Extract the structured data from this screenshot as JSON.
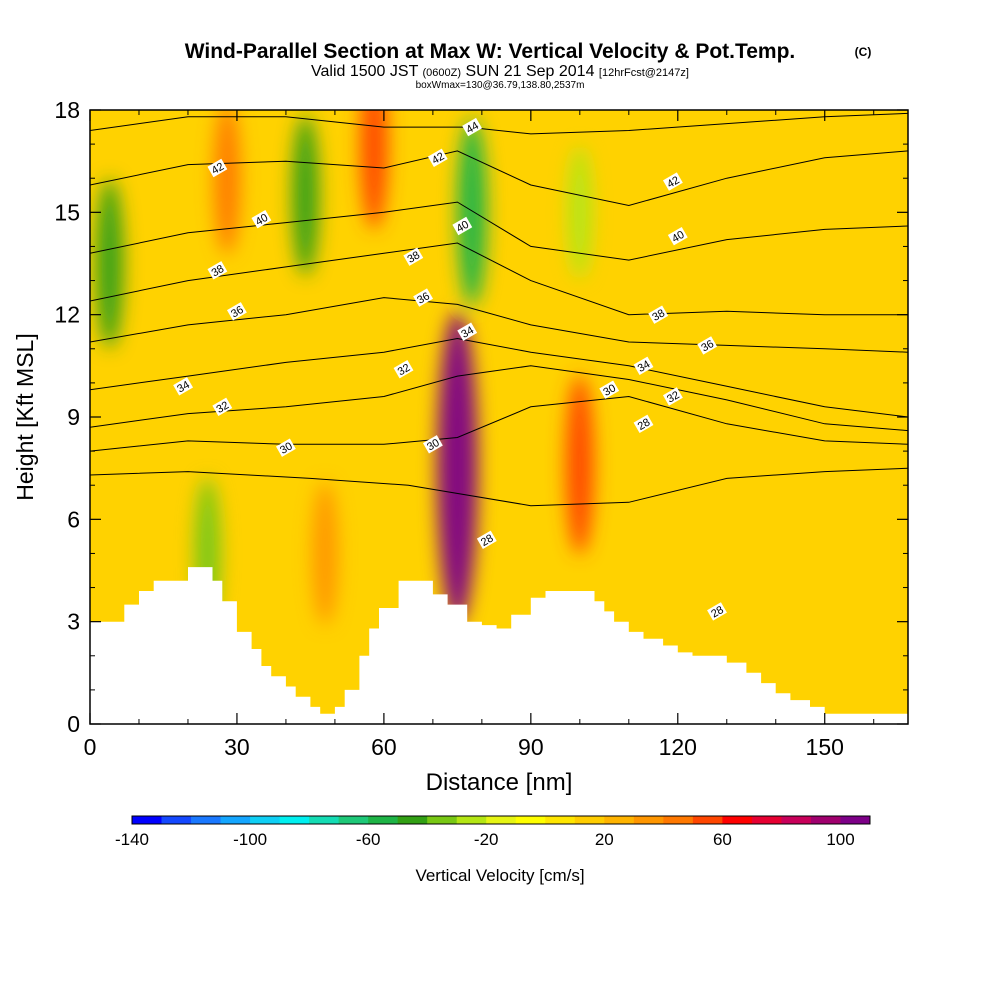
{
  "chart_data": {
    "type": "heatmap",
    "title": "Wind-Parallel Section at Max W: Vertical Velocity & Pot.Temp.",
    "title_mark": "(C)",
    "subtitle": {
      "valid_label": "Valid 1500 JST",
      "utc": "(0600Z)",
      "date": "SUN 21 Sep 2014",
      "forecast": "[12hrFcst@2147z]"
    },
    "box_note": "boxWmax=130@36.79,138.80,2537m",
    "xlabel": "Distance [nm]",
    "ylabel": "Height [Kft MSL]",
    "xlim": [
      0,
      167
    ],
    "ylim": [
      0,
      18
    ],
    "x_ticks": [
      0,
      30,
      60,
      90,
      120,
      150
    ],
    "x_tick_labels": [
      "0",
      "30",
      "60",
      "90",
      "120",
      "150"
    ],
    "y_ticks": [
      0,
      3,
      6,
      9,
      12,
      15,
      18
    ],
    "y_tick_labels": [
      "0",
      "3",
      "6",
      "9",
      "12",
      "15",
      "18"
    ],
    "colorbar": {
      "label": "Vertical Velocity [cm/s]",
      "min": -140,
      "max": 110,
      "step": 10,
      "tick_values": [
        -140,
        -100,
        -60,
        -20,
        20,
        60,
        100
      ],
      "tick_labels": [
        "-140",
        "-100",
        "-60",
        "-20",
        "20",
        "60",
        "100"
      ],
      "colors": [
        "#0000ff",
        "#1448ff",
        "#1a78ff",
        "#14a6ff",
        "#0fcff5",
        "#00f0f0",
        "#14dcb4",
        "#1ec878",
        "#1eb446",
        "#32a014",
        "#78c814",
        "#b4e614",
        "#e6f514",
        "#ffff00",
        "#ffe600",
        "#ffcd00",
        "#ffb400",
        "#ff9600",
        "#ff7800",
        "#ff4600",
        "#ff0000",
        "#e60032",
        "#c8005a",
        "#a0006e",
        "#7d0087"
      ]
    },
    "velocity_features": [
      {
        "x": 75,
        "y": 7.5,
        "w": 130,
        "note": "max updraft"
      },
      {
        "x": 100,
        "y": 7.6,
        "w": 55
      },
      {
        "x": 48,
        "y": 5.0,
        "w": 35
      },
      {
        "x": 28,
        "y": 16.0,
        "w": 40
      },
      {
        "x": 58,
        "y": 17.0,
        "w": 50
      },
      {
        "x": 78,
        "y": 15.0,
        "w": -60
      },
      {
        "x": 100,
        "y": 15.0,
        "w": -30
      },
      {
        "x": 44,
        "y": 15.5,
        "w": -45
      },
      {
        "x": 4,
        "y": 13.5,
        "w": -50
      },
      {
        "x": 24,
        "y": 5.0,
        "w": -40
      }
    ],
    "terrain_profile": {
      "x": [
        0,
        5,
        7,
        10,
        13,
        20,
        25,
        27,
        30,
        33,
        35,
        37,
        40,
        42,
        45,
        47,
        50,
        52,
        55,
        57,
        59,
        63,
        68,
        70,
        73,
        77,
        80,
        83,
        86,
        90,
        93,
        95,
        100,
        103,
        105,
        107,
        110,
        113,
        117,
        120,
        123,
        126,
        130,
        134,
        137,
        140,
        143,
        147,
        150,
        152,
        163,
        167
      ],
      "y": [
        3.0,
        3.0,
        3.5,
        3.9,
        4.2,
        4.6,
        4.2,
        3.6,
        2.7,
        2.2,
        1.7,
        1.4,
        1.1,
        0.8,
        0.5,
        0.3,
        0.5,
        1.0,
        2.0,
        2.8,
        3.4,
        4.2,
        4.2,
        3.8,
        3.5,
        3.0,
        2.9,
        2.8,
        3.2,
        3.7,
        3.9,
        3.9,
        3.9,
        3.6,
        3.3,
        3.0,
        2.7,
        2.5,
        2.3,
        2.1,
        2.0,
        2.0,
        1.8,
        1.5,
        1.2,
        0.9,
        0.7,
        0.5,
        0.3,
        0.3,
        0.3,
        0.6
      ]
    },
    "isentropes": [
      {
        "value": 28,
        "x": [
          0,
          20,
          45,
          65,
          90,
          110,
          130,
          150,
          167
        ],
        "y": [
          7.3,
          7.4,
          7.2,
          7.0,
          6.4,
          6.5,
          7.2,
          7.4,
          7.5
        ]
      },
      {
        "value": 30,
        "x": [
          0,
          20,
          40,
          60,
          75,
          90,
          110,
          130,
          150,
          167
        ],
        "y": [
          8.0,
          8.3,
          8.2,
          8.2,
          8.4,
          9.3,
          9.6,
          8.8,
          8.3,
          8.2
        ]
      },
      {
        "value": 32,
        "x": [
          0,
          20,
          40,
          60,
          75,
          90,
          110,
          130,
          150,
          167
        ],
        "y": [
          8.7,
          9.1,
          9.3,
          9.6,
          10.2,
          10.5,
          10.1,
          9.5,
          8.8,
          8.6
        ]
      },
      {
        "value": 34,
        "x": [
          0,
          20,
          40,
          60,
          75,
          90,
          110,
          130,
          150,
          167
        ],
        "y": [
          9.8,
          10.2,
          10.6,
          10.9,
          11.3,
          10.9,
          10.5,
          9.9,
          9.3,
          9.0
        ]
      },
      {
        "value": 36,
        "x": [
          0,
          20,
          40,
          60,
          75,
          90,
          110,
          130,
          150,
          167
        ],
        "y": [
          11.2,
          11.7,
          12.0,
          12.5,
          12.3,
          11.7,
          11.2,
          11.1,
          11.0,
          10.9
        ]
      },
      {
        "value": 38,
        "x": [
          0,
          20,
          40,
          60,
          75,
          90,
          110,
          130,
          150,
          167
        ],
        "y": [
          12.4,
          13.0,
          13.4,
          13.8,
          14.1,
          13.0,
          12.0,
          12.1,
          12.0,
          12.0
        ]
      },
      {
        "value": 40,
        "x": [
          0,
          20,
          40,
          60,
          75,
          90,
          110,
          130,
          150,
          167
        ],
        "y": [
          13.8,
          14.4,
          14.7,
          15.0,
          15.3,
          14.0,
          13.6,
          14.2,
          14.5,
          14.6
        ]
      },
      {
        "value": 42,
        "x": [
          0,
          20,
          40,
          60,
          75,
          90,
          110,
          130,
          150,
          167
        ],
        "y": [
          15.8,
          16.4,
          16.5,
          16.3,
          16.8,
          15.8,
          15.2,
          16.0,
          16.6,
          16.8
        ]
      },
      {
        "value": 44,
        "x": [
          0,
          20,
          40,
          60,
          77,
          90,
          110,
          130,
          150,
          167
        ],
        "y": [
          17.4,
          17.8,
          17.8,
          17.5,
          17.5,
          17.3,
          17.4,
          17.6,
          17.8,
          17.9
        ]
      }
    ],
    "isentrope_labels": [
      {
        "text": "28",
        "x": 81,
        "y": 5.4
      },
      {
        "text": "28",
        "x": 128,
        "y": 3.3
      },
      {
        "text": "28",
        "x": 113,
        "y": 8.8
      },
      {
        "text": "30",
        "x": 40,
        "y": 8.1
      },
      {
        "text": "30",
        "x": 70,
        "y": 8.2
      },
      {
        "text": "30",
        "x": 106,
        "y": 9.8
      },
      {
        "text": "32",
        "x": 27,
        "y": 9.3
      },
      {
        "text": "32",
        "x": 64,
        "y": 10.4
      },
      {
        "text": "32",
        "x": 119,
        "y": 9.6
      },
      {
        "text": "34",
        "x": 19,
        "y": 9.9
      },
      {
        "text": "34",
        "x": 77,
        "y": 11.5
      },
      {
        "text": "34",
        "x": 113,
        "y": 10.5
      },
      {
        "text": "36",
        "x": 30,
        "y": 12.1
      },
      {
        "text": "36",
        "x": 68,
        "y": 12.5
      },
      {
        "text": "36",
        "x": 126,
        "y": 11.1
      },
      {
        "text": "38",
        "x": 26,
        "y": 13.3
      },
      {
        "text": "38",
        "x": 66,
        "y": 13.7
      },
      {
        "text": "38",
        "x": 116,
        "y": 12.0
      },
      {
        "text": "40",
        "x": 35,
        "y": 14.8
      },
      {
        "text": "40",
        "x": 76,
        "y": 14.6
      },
      {
        "text": "40",
        "x": 120,
        "y": 14.3
      },
      {
        "text": "42",
        "x": 26,
        "y": 16.3
      },
      {
        "text": "42",
        "x": 71,
        "y": 16.6
      },
      {
        "text": "42",
        "x": 119,
        "y": 15.9
      },
      {
        "text": "44",
        "x": 78,
        "y": 17.5
      }
    ]
  }
}
